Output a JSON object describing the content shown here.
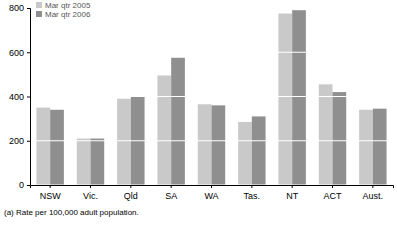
{
  "chart_data": {
    "type": "bar",
    "categories": [
      "NSW",
      "Vic.",
      "Qld",
      "SA",
      "WA",
      "Tas.",
      "NT",
      "ACT",
      "Aust."
    ],
    "series": [
      {
        "name": "Mar qtr 2005",
        "color": "#c9c9c9",
        "values": [
          350,
          210,
          390,
          495,
          365,
          285,
          775,
          455,
          340
        ]
      },
      {
        "name": "Mar qtr 2006",
        "color": "#8f8f8f",
        "values": [
          340,
          210,
          400,
          575,
          360,
          310,
          790,
          420,
          345
        ]
      }
    ],
    "ylim": [
      0,
      800
    ],
    "yticks": [
      0,
      200,
      400,
      600,
      800
    ],
    "grid": true,
    "legend": "upper left",
    "annotations": [
      "(a) Rate per 100,000 adult population."
    ]
  }
}
